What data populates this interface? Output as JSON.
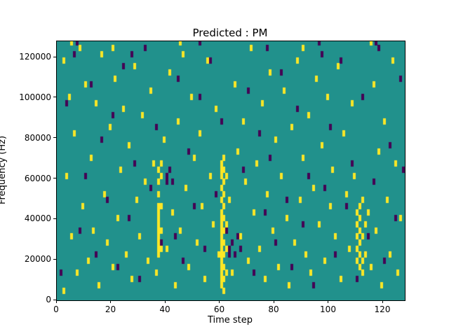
{
  "title": "Predicted : PM",
  "axes": {
    "xlabel": "Time step",
    "ylabel": "Frequency (Hz)",
    "x_ticks": [
      0,
      20,
      40,
      60,
      80,
      100,
      120
    ],
    "y_ticks": [
      0,
      20000,
      40000,
      60000,
      80000,
      100000,
      120000
    ]
  },
  "chart_data": {
    "type": "heatmap",
    "title": "Predicted : PM",
    "xlabel": "Time step",
    "ylabel": "Frequency (Hz)",
    "xlim": [
      0,
      128
    ],
    "ylim": [
      0,
      128000
    ],
    "grid": false,
    "legend": "none",
    "colors": {
      "background": "#21918c",
      "yellow": "#fde725",
      "purple": "#440154"
    },
    "cell_size": {
      "x": 1,
      "y": 3000
    },
    "cells": {
      "yellow": [
        [
          60,
          6000
        ],
        [
          60,
          9000
        ],
        [
          60,
          12000
        ],
        [
          60,
          15000
        ],
        [
          60,
          18000
        ],
        [
          60,
          21000
        ],
        [
          60,
          24000
        ],
        [
          60,
          27000
        ],
        [
          60,
          30000
        ],
        [
          60,
          33000
        ],
        [
          60,
          36000
        ],
        [
          60,
          39000
        ],
        [
          60,
          42000
        ],
        [
          60,
          48000
        ],
        [
          60,
          54000
        ],
        [
          60,
          60000
        ],
        [
          60,
          63000
        ],
        [
          60,
          66000
        ],
        [
          61,
          3000
        ],
        [
          61,
          9000
        ],
        [
          61,
          15000
        ],
        [
          61,
          21000
        ],
        [
          61,
          27000
        ],
        [
          61,
          33000
        ],
        [
          61,
          39000
        ],
        [
          61,
          45000
        ],
        [
          61,
          51000
        ],
        [
          61,
          57000
        ],
        [
          61,
          63000
        ],
        [
          61,
          69000
        ],
        [
          62,
          12000
        ],
        [
          62,
          24000
        ],
        [
          62,
          36000
        ],
        [
          62,
          60000
        ],
        [
          37,
          21000
        ],
        [
          37,
          24000
        ],
        [
          37,
          27000
        ],
        [
          37,
          30000
        ],
        [
          37,
          33000
        ],
        [
          37,
          36000
        ],
        [
          37,
          39000
        ],
        [
          37,
          42000
        ],
        [
          37,
          45000
        ],
        [
          37,
          51000
        ],
        [
          37,
          57000
        ],
        [
          37,
          63000
        ],
        [
          38,
          24000
        ],
        [
          38,
          33000
        ],
        [
          38,
          45000
        ],
        [
          38,
          60000
        ],
        [
          38,
          66000
        ],
        [
          110,
          18000
        ],
        [
          110,
          24000
        ],
        [
          110,
          30000
        ],
        [
          110,
          36000
        ],
        [
          110,
          42000
        ],
        [
          111,
          15000
        ],
        [
          111,
          21000
        ],
        [
          111,
          27000
        ],
        [
          111,
          33000
        ],
        [
          111,
          39000
        ],
        [
          111,
          45000
        ],
        [
          112,
          12000
        ],
        [
          112,
          18000
        ],
        [
          112,
          30000
        ],
        [
          112,
          48000
        ],
        [
          113,
          21000
        ],
        [
          113,
          36000
        ],
        [
          2,
          3000
        ],
        [
          2,
          117000
        ],
        [
          3,
          60000
        ],
        [
          4,
          99000
        ],
        [
          5,
          30000
        ],
        [
          6,
          81000
        ],
        [
          7,
          12000
        ],
        [
          8,
          123000
        ],
        [
          9,
          45000
        ],
        [
          10,
          105000
        ],
        [
          11,
          18000
        ],
        [
          12,
          69000
        ],
        [
          13,
          33000
        ],
        [
          14,
          96000
        ],
        [
          15,
          6000
        ],
        [
          16,
          120000
        ],
        [
          17,
          51000
        ],
        [
          18,
          27000
        ],
        [
          19,
          84000
        ],
        [
          20,
          15000
        ],
        [
          21,
          108000
        ],
        [
          22,
          39000
        ],
        [
          23,
          63000
        ],
        [
          24,
          93000
        ],
        [
          25,
          21000
        ],
        [
          26,
          75000
        ],
        [
          27,
          9000
        ],
        [
          28,
          114000
        ],
        [
          29,
          48000
        ],
        [
          30,
          30000
        ],
        [
          31,
          90000
        ],
        [
          32,
          57000
        ],
        [
          33,
          18000
        ],
        [
          34,
          102000
        ],
        [
          35,
          66000
        ],
        [
          36,
          12000
        ],
        [
          39,
          78000
        ],
        [
          40,
          24000
        ],
        [
          41,
          111000
        ],
        [
          42,
          42000
        ],
        [
          43,
          6000
        ],
        [
          44,
          87000
        ],
        [
          45,
          33000
        ],
        [
          46,
          120000
        ],
        [
          47,
          54000
        ],
        [
          48,
          15000
        ],
        [
          49,
          99000
        ],
        [
          50,
          69000
        ],
        [
          51,
          27000
        ],
        [
          52,
          81000
        ],
        [
          53,
          45000
        ],
        [
          54,
          9000
        ],
        [
          55,
          117000
        ],
        [
          56,
          60000
        ],
        [
          57,
          36000
        ],
        [
          58,
          93000
        ],
        [
          59,
          21000
        ],
        [
          63,
          48000
        ],
        [
          64,
          12000
        ],
        [
          65,
          105000
        ],
        [
          66,
          72000
        ],
        [
          67,
          30000
        ],
        [
          68,
          87000
        ],
        [
          69,
          57000
        ],
        [
          70,
          18000
        ],
        [
          71,
          123000
        ],
        [
          72,
          42000
        ],
        [
          73,
          66000
        ],
        [
          74,
          24000
        ],
        [
          75,
          96000
        ],
        [
          76,
          9000
        ],
        [
          77,
          51000
        ],
        [
          78,
          111000
        ],
        [
          79,
          33000
        ],
        [
          80,
          78000
        ],
        [
          81,
          15000
        ],
        [
          82,
          60000
        ],
        [
          83,
          102000
        ],
        [
          84,
          39000
        ],
        [
          85,
          6000
        ],
        [
          86,
          84000
        ],
        [
          87,
          27000
        ],
        [
          88,
          117000
        ],
        [
          89,
          48000
        ],
        [
          90,
          69000
        ],
        [
          91,
          21000
        ],
        [
          92,
          90000
        ],
        [
          93,
          12000
        ],
        [
          94,
          54000
        ],
        [
          95,
          108000
        ],
        [
          96,
          36000
        ],
        [
          97,
          75000
        ],
        [
          98,
          18000
        ],
        [
          99,
          99000
        ],
        [
          100,
          45000
        ],
        [
          101,
          63000
        ],
        [
          102,
          30000
        ],
        [
          103,
          114000
        ],
        [
          104,
          9000
        ],
        [
          105,
          81000
        ],
        [
          106,
          51000
        ],
        [
          107,
          24000
        ],
        [
          108,
          96000
        ],
        [
          109,
          60000
        ],
        [
          114,
          42000
        ],
        [
          115,
          15000
        ],
        [
          116,
          105000
        ],
        [
          117,
          33000
        ],
        [
          118,
          72000
        ],
        [
          119,
          6000
        ],
        [
          120,
          87000
        ],
        [
          121,
          48000
        ],
        [
          122,
          21000
        ],
        [
          123,
          117000
        ],
        [
          124,
          66000
        ],
        [
          125,
          12000
        ],
        [
          126,
          39000
        ],
        [
          5,
          126000
        ],
        [
          20,
          123000
        ],
        [
          45,
          126000
        ],
        [
          90,
          123000
        ],
        [
          115,
          126000
        ]
      ],
      "purple": [
        [
          1,
          12000
        ],
        [
          3,
          96000
        ],
        [
          6,
          120000
        ],
        [
          8,
          33000
        ],
        [
          10,
          60000
        ],
        [
          12,
          105000
        ],
        [
          14,
          21000
        ],
        [
          16,
          78000
        ],
        [
          18,
          48000
        ],
        [
          20,
          90000
        ],
        [
          22,
          15000
        ],
        [
          24,
          114000
        ],
        [
          26,
          39000
        ],
        [
          28,
          66000
        ],
        [
          30,
          9000
        ],
        [
          32,
          123000
        ],
        [
          34,
          54000
        ],
        [
          36,
          84000
        ],
        [
          38,
          27000
        ],
        [
          40,
          57000
        ],
        [
          40,
          60000
        ],
        [
          41,
          63000
        ],
        [
          42,
          57000
        ],
        [
          43,
          30000
        ],
        [
          44,
          108000
        ],
        [
          46,
          18000
        ],
        [
          48,
          72000
        ],
        [
          50,
          45000
        ],
        [
          52,
          99000
        ],
        [
          54,
          24000
        ],
        [
          56,
          117000
        ],
        [
          58,
          51000
        ],
        [
          60,
          87000
        ],
        [
          62,
          33000
        ],
        [
          63,
          21000
        ],
        [
          63,
          24000
        ],
        [
          64,
          27000
        ],
        [
          65,
          21000
        ],
        [
          66,
          30000
        ],
        [
          67,
          24000
        ],
        [
          68,
          63000
        ],
        [
          70,
          102000
        ],
        [
          72,
          12000
        ],
        [
          74,
          81000
        ],
        [
          76,
          42000
        ],
        [
          78,
          69000
        ],
        [
          80,
          27000
        ],
        [
          82,
          111000
        ],
        [
          84,
          48000
        ],
        [
          86,
          15000
        ],
        [
          88,
          93000
        ],
        [
          90,
          36000
        ],
        [
          92,
          60000
        ],
        [
          94,
          6000
        ],
        [
          96,
          126000
        ],
        [
          98,
          54000
        ],
        [
          100,
          84000
        ],
        [
          102,
          21000
        ],
        [
          104,
          117000
        ],
        [
          106,
          45000
        ],
        [
          108,
          66000
        ],
        [
          110,
          9000
        ],
        [
          112,
          99000
        ],
        [
          114,
          30000
        ],
        [
          116,
          57000
        ],
        [
          118,
          123000
        ],
        [
          120,
          18000
        ],
        [
          122,
          75000
        ],
        [
          124,
          39000
        ],
        [
          126,
          108000
        ],
        [
          127,
          63000
        ],
        [
          7,
          126000
        ],
        [
          27,
          120000
        ],
        [
          52,
          126000
        ],
        [
          77,
          123000
        ],
        [
          97,
          120000
        ],
        [
          117,
          126000
        ]
      ]
    }
  }
}
